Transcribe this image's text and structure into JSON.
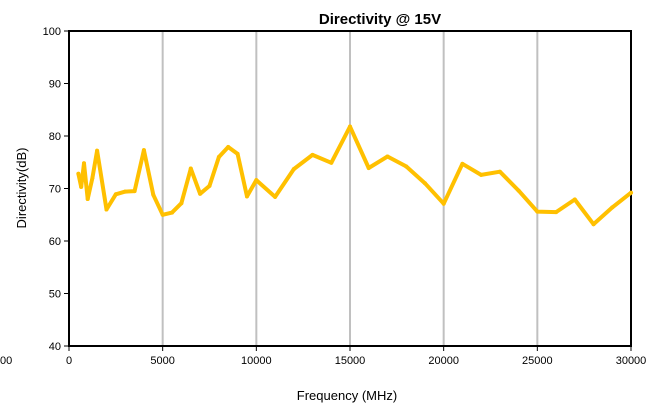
{
  "chart_data": {
    "type": "line",
    "title": "Directivity @ 15V",
    "xlabel": "Frequency (MHz)",
    "ylabel": "Directivity(dB)",
    "xlim": [
      0,
      30000
    ],
    "ylim": [
      40,
      100
    ],
    "x_ticks": [
      "0",
      "5000",
      "10000",
      "15000",
      "20000",
      "25000",
      "30000"
    ],
    "y_ticks": [
      "40",
      "50",
      "60",
      "70",
      "80",
      "90",
      "100"
    ],
    "left_partial_tick": "00",
    "grid": "vertical",
    "legend": "none",
    "series": [
      {
        "color": "#FFC000",
        "x": [
          500,
          650,
          800,
          1000,
          1250,
          1500,
          2000,
          2500,
          3000,
          3500,
          4000,
          4500,
          5000,
          5500,
          6000,
          6500,
          7000,
          7500,
          8000,
          8500,
          9000,
          9500,
          10000,
          11000,
          12000,
          13000,
          14000,
          15000,
          16000,
          17000,
          18000,
          19000,
          20000,
          21000,
          22000,
          23000,
          24000,
          25000,
          26000,
          27000,
          28000,
          29000,
          30000
        ],
        "y": [
          72.8,
          70.3,
          74.8,
          68.0,
          72.0,
          77.2,
          66.0,
          68.9,
          69.4,
          69.5,
          77.3,
          68.8,
          65.0,
          65.4,
          67.2,
          73.8,
          69.0,
          70.5,
          76.0,
          77.9,
          76.6,
          68.5,
          71.6,
          68.4,
          73.7,
          76.4,
          74.9,
          81.8,
          73.9,
          76.1,
          74.2,
          71.0,
          67.1,
          74.7,
          72.6,
          73.2,
          69.6,
          65.6,
          65.5,
          67.9,
          63.2,
          66.4,
          69.2
        ]
      }
    ]
  }
}
